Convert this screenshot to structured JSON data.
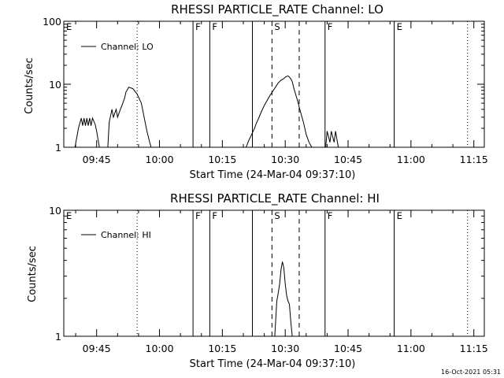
{
  "chart_data": [
    {
      "type": "line",
      "title": "RHESSI PARTICLE_RATE Channel: LO",
      "xlabel": "Start Time (24-Mar-04 09:37:10)",
      "ylabel": "Counts/sec",
      "y_scale": "log",
      "ylim": [
        1,
        100
      ],
      "y_ticks": [
        1,
        10,
        100
      ],
      "y_tick_labels": [
        "1",
        "10",
        "100"
      ],
      "xlim": [
        "09:37:10",
        "11:17:30"
      ],
      "x_ticks": [
        "09:45",
        "10:00",
        "10:15",
        "10:30",
        "10:45",
        "11:00",
        "11:15"
      ],
      "legend": {
        "placement": "top-left",
        "entries": [
          "Channel: LO"
        ]
      },
      "series": [
        {
          "name": "Channel: LO",
          "x": [
            "09:39:50",
            "09:40:40",
            "09:41:20",
            "09:41:40",
            "09:42:00",
            "09:42:20",
            "09:42:40",
            "09:43:00",
            "09:43:20",
            "09:43:40",
            "09:44:00",
            "09:44:40",
            "09:45:00",
            "09:45:40",
            "09:47:40",
            "09:48:00",
            "09:48:40",
            "09:49:00",
            "09:49:40",
            "09:50:00",
            "09:50:40",
            "09:51:00",
            "09:51:40",
            "09:52:00",
            "09:52:40",
            "09:53:40",
            "09:54:40",
            "09:55:40",
            "09:56:20",
            "09:57:00",
            "09:57:40",
            "09:58:00",
            "10:20:40",
            "10:21:20",
            "10:22:00",
            "10:22:40",
            "10:23:00",
            "10:23:40",
            "10:24:20",
            "10:25:00",
            "10:25:40",
            "10:26:20",
            "10:27:00",
            "10:27:40",
            "10:28:20",
            "10:29:00",
            "10:29:40",
            "10:30:00",
            "10:30:20",
            "10:30:40",
            "10:31:00",
            "10:31:20",
            "10:31:40",
            "10:32:00",
            "10:32:20",
            "10:33:00",
            "10:33:40",
            "10:34:20",
            "10:35:00",
            "10:35:40",
            "10:36:20",
            "10:37:00",
            "10:39:40",
            "10:40:00",
            "10:40:40",
            "10:41:00",
            "10:41:40",
            "10:42:00",
            "10:42:40"
          ],
          "y": [
            1,
            2,
            2.9,
            2.2,
            2.9,
            2.2,
            2.9,
            2.2,
            2.9,
            2.2,
            2.9,
            2.3,
            1.8,
            1,
            1,
            2.5,
            4,
            3,
            4,
            3,
            4,
            4.5,
            6,
            7.5,
            9,
            8.5,
            7,
            5,
            3,
            1.8,
            1.2,
            1,
            1,
            1.3,
            1.6,
            2,
            2.3,
            2.9,
            3.7,
            4.6,
            5.5,
            6.6,
            7.7,
            9,
            10.5,
            11.6,
            12.3,
            13,
            13.3,
            13.6,
            13,
            12.2,
            11,
            9,
            7.5,
            5.3,
            3.6,
            2.5,
            1.6,
            1.2,
            1,
            1,
            1,
            1.8,
            1.2,
            1.8,
            1.2,
            1.8,
            1
          ]
        }
      ],
      "events": [
        {
          "label": "E",
          "time": "09:37:10",
          "style": "solid"
        },
        {
          "label": "",
          "time": "09:54:40",
          "style": "dotted"
        },
        {
          "label": "F",
          "time": "10:08:00",
          "style": "solid"
        },
        {
          "label": "F",
          "time": "10:12:00",
          "style": "solid"
        },
        {
          "label": "",
          "time": "10:22:10",
          "style": "solid"
        },
        {
          "label": "S",
          "time": "10:26:50",
          "style": "dashed"
        },
        {
          "label": "",
          "time": "10:33:20",
          "style": "dashed"
        },
        {
          "label": "F",
          "time": "10:39:30",
          "style": "solid"
        },
        {
          "label": "E",
          "time": "10:56:00",
          "style": "solid"
        },
        {
          "label": "",
          "time": "11:13:30",
          "style": "dotted"
        }
      ]
    },
    {
      "type": "line",
      "title": "RHESSI PARTICLE_RATE Channel: HI",
      "xlabel": "Start Time (24-Mar-04 09:37:10)",
      "ylabel": "Counts/sec",
      "y_scale": "log",
      "ylim": [
        1,
        10
      ],
      "y_ticks": [
        1,
        10
      ],
      "y_tick_labels": [
        "1",
        "10"
      ],
      "xlim": [
        "09:37:10",
        "11:17:30"
      ],
      "x_ticks": [
        "09:45",
        "10:00",
        "10:15",
        "10:30",
        "10:45",
        "11:00",
        "11:15"
      ],
      "legend": {
        "placement": "top-left",
        "entries": [
          "Channel: HI"
        ]
      },
      "series": [
        {
          "name": "Channel: HI",
          "x": [
            "10:27:30",
            "10:28:00",
            "10:28:20",
            "10:28:40",
            "10:29:00",
            "10:29:20",
            "10:29:40",
            "10:30:00",
            "10:30:20",
            "10:30:40",
            "10:31:00",
            "10:31:20",
            "10:31:40"
          ],
          "y": [
            1,
            1.9,
            2.2,
            2.6,
            3.4,
            3.9,
            3.5,
            2.6,
            2.1,
            1.9,
            1.8,
            1.3,
            1
          ]
        }
      ],
      "events": [
        {
          "label": "E",
          "time": "09:37:10",
          "style": "solid"
        },
        {
          "label": "",
          "time": "09:54:40",
          "style": "dotted"
        },
        {
          "label": "F",
          "time": "10:08:00",
          "style": "solid"
        },
        {
          "label": "F",
          "time": "10:12:00",
          "style": "solid"
        },
        {
          "label": "",
          "time": "10:22:10",
          "style": "solid"
        },
        {
          "label": "S",
          "time": "10:26:50",
          "style": "dashed"
        },
        {
          "label": "",
          "time": "10:33:20",
          "style": "dashed"
        },
        {
          "label": "F",
          "time": "10:39:30",
          "style": "solid"
        },
        {
          "label": "E",
          "time": "10:56:00",
          "style": "solid"
        },
        {
          "label": "",
          "time": "11:13:30",
          "style": "dotted"
        }
      ]
    }
  ],
  "footer": {
    "timestamp": "16-Oct-2021 05:31"
  }
}
